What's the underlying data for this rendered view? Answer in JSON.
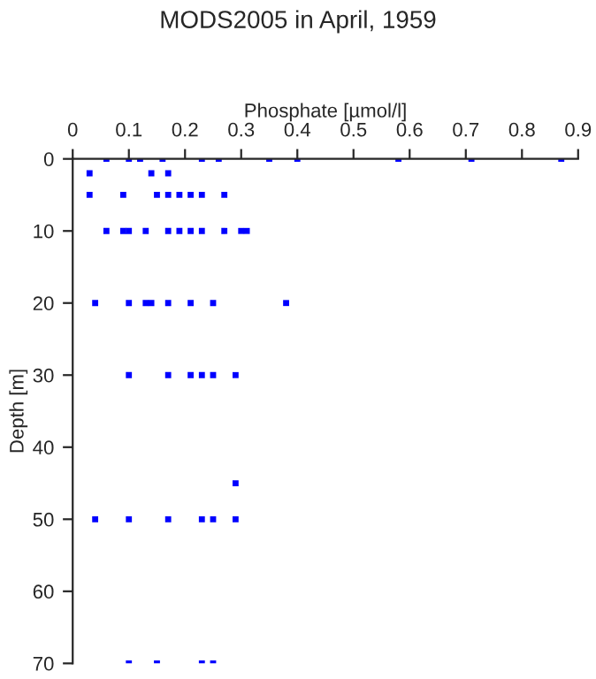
{
  "chart_data": {
    "type": "scatter",
    "title": "MODS2005 in April, 1959",
    "xlabel": "Phosphate [µmol/l]",
    "ylabel": "Depth [m]",
    "xlim": [
      0,
      0.9
    ],
    "xticks": [
      0,
      0.1,
      0.2,
      0.3,
      0.4,
      0.5,
      0.6,
      0.7,
      0.8,
      0.9
    ],
    "ylim": [
      70,
      0
    ],
    "yticks": [
      0,
      10,
      20,
      30,
      40,
      50,
      60,
      70
    ],
    "marker": "square",
    "grid": false,
    "legend": false,
    "series": [
      {
        "color": "#0000ff",
        "x": [
          0.06,
          0.1,
          0.12,
          0.16,
          0.23,
          0.26,
          0.35,
          0.4,
          0.58,
          0.71,
          0.87,
          0.03,
          0.14,
          0.17,
          0.03,
          0.09,
          0.15,
          0.17,
          0.19,
          0.21,
          0.23,
          0.27,
          0.06,
          0.09,
          0.1,
          0.13,
          0.17,
          0.19,
          0.21,
          0.23,
          0.27,
          0.3,
          0.31,
          0.04,
          0.1,
          0.13,
          0.14,
          0.17,
          0.21,
          0.25,
          0.38,
          0.1,
          0.17,
          0.21,
          0.23,
          0.25,
          0.29,
          0.29,
          0.04,
          0.1,
          0.17,
          0.23,
          0.25,
          0.29,
          0.1,
          0.15,
          0.23,
          0.25
        ],
        "values": [
          0,
          0,
          0,
          0,
          0,
          0,
          0,
          0,
          0,
          0,
          0,
          2,
          2,
          2,
          5,
          5,
          5,
          5,
          5,
          5,
          5,
          5,
          10,
          10,
          10,
          10,
          10,
          10,
          10,
          10,
          10,
          10,
          10,
          20,
          20,
          20,
          20,
          20,
          20,
          20,
          20,
          30,
          30,
          30,
          30,
          30,
          30,
          45,
          50,
          50,
          50,
          50,
          50,
          50,
          70,
          70,
          70,
          70
        ]
      }
    ]
  }
}
